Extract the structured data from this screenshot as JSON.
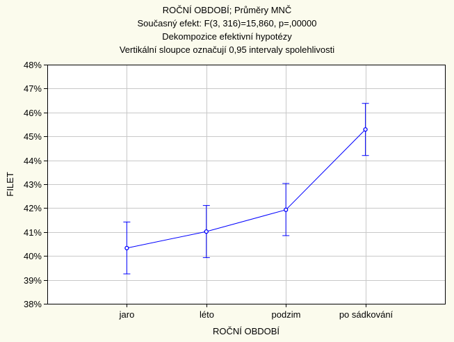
{
  "chart_data": {
    "type": "line",
    "title": "ROČNÍ OBDOBÍ; Průměry MNČ",
    "subtitle_lines": [
      "Současný efekt: F(3, 316)=15,860, p=,00000",
      "Dekompozice efektivní hypotézy",
      "Vertikální sloupce označují 0,95 intervaly spolehlivosti"
    ],
    "xlabel": "ROČNÍ OBDOBÍ",
    "ylabel": "FILET",
    "categories": [
      "jaro",
      "léto",
      "podzim",
      "po sádkování"
    ],
    "values": [
      40.33,
      41.02,
      41.93,
      45.29
    ],
    "ci_lower": [
      39.25,
      39.93,
      40.85,
      44.2
    ],
    "ci_upper": [
      41.42,
      42.11,
      43.03,
      46.38
    ],
    "ylim": [
      38,
      48
    ],
    "yticks": [
      "38%",
      "39%",
      "40%",
      "41%",
      "42%",
      "43%",
      "44%",
      "45%",
      "46%",
      "47%",
      "48%"
    ],
    "grid": true,
    "colors": {
      "series": "#0000ff",
      "grid": "#c8c8c8",
      "background": "#fbfbed",
      "plot_background": "#ffffff"
    }
  }
}
